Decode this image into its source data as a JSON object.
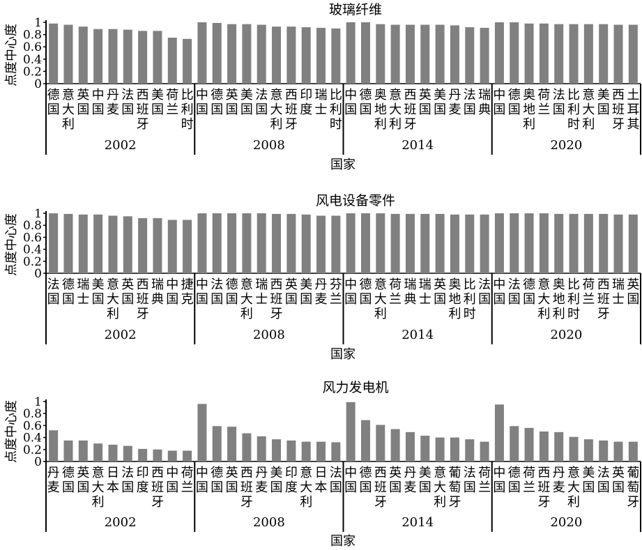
{
  "chart_data": [
    {
      "type": "bar",
      "title": "玻璃纤维",
      "xlabel": "国家",
      "ylabel": "点度中心度",
      "ylim": [
        0,
        1
      ],
      "yticks": [
        "0",
        "0.2",
        "0.4",
        "0.6",
        "0.8",
        "1"
      ],
      "bar_color": "#808080",
      "groups": [
        {
          "year": "2002",
          "categories": [
            "德国",
            "意大利",
            "英国",
            "中国",
            "丹麦",
            "法国",
            "西班牙",
            "美国",
            "荷兰",
            "比利时"
          ],
          "values": [
            0.98,
            0.96,
            0.93,
            0.89,
            0.89,
            0.88,
            0.86,
            0.86,
            0.75,
            0.73
          ]
        },
        {
          "year": "2008",
          "categories": [
            "中国",
            "德国",
            "英国",
            "美国",
            "法国",
            "意大利",
            "西班牙",
            "印度",
            "瑞士",
            "比利时"
          ],
          "values": [
            1.0,
            0.99,
            0.97,
            0.97,
            0.96,
            0.93,
            0.93,
            0.92,
            0.91,
            0.9
          ]
        },
        {
          "year": "2014",
          "categories": [
            "中国",
            "德国",
            "奥地利",
            "意大利",
            "西班牙",
            "英国",
            "美国",
            "丹麦",
            "法国",
            "瑞典"
          ],
          "values": [
            1.0,
            1.0,
            0.97,
            0.96,
            0.96,
            0.96,
            0.96,
            0.95,
            0.92,
            0.91
          ]
        },
        {
          "year": "2020",
          "categories": [
            "中国",
            "德国",
            "奥地利",
            "荷兰",
            "法国",
            "比利时",
            "意大利",
            "美国",
            "西班牙",
            "土耳其"
          ],
          "values": [
            1.0,
            1.0,
            0.98,
            0.98,
            0.97,
            0.97,
            0.97,
            0.97,
            0.96,
            0.96
          ]
        }
      ]
    },
    {
      "type": "bar",
      "title": "风电设备零件",
      "xlabel": "国家",
      "ylabel": "点度中心度",
      "ylim": [
        0,
        1
      ],
      "yticks": [
        "0",
        "0.2",
        "0.4",
        "0.6",
        "0.8",
        "1"
      ],
      "bar_color": "#808080",
      "groups": [
        {
          "year": "2002",
          "categories": [
            "法国",
            "德国",
            "瑞士",
            "美国",
            "意大利",
            "英国",
            "西班牙",
            "瑞典",
            "中国",
            "捷克"
          ],
          "values": [
            1.0,
            0.99,
            0.98,
            0.98,
            0.96,
            0.95,
            0.92,
            0.92,
            0.89,
            0.89
          ]
        },
        {
          "year": "2008",
          "categories": [
            "中国",
            "法国",
            "德国",
            "意大利",
            "瑞士",
            "西班牙",
            "英国",
            "美国",
            "丹麦",
            "芬兰"
          ],
          "values": [
            1.0,
            1.0,
            1.0,
            1.0,
            1.0,
            0.99,
            0.99,
            0.98,
            0.96,
            0.96
          ]
        },
        {
          "year": "2014",
          "categories": [
            "中国",
            "德国",
            "意大利",
            "荷兰",
            "瑞典",
            "瑞士",
            "英国",
            "奥地利",
            "比利时",
            "法国"
          ],
          "values": [
            1.0,
            1.0,
            1.0,
            0.99,
            0.99,
            0.99,
            0.99,
            0.98,
            0.98,
            0.98
          ]
        },
        {
          "year": "2020",
          "categories": [
            "中国",
            "法国",
            "德国",
            "意大利",
            "奥地利",
            "比利时",
            "荷兰",
            "西班牙",
            "瑞士",
            "英国"
          ],
          "values": [
            1.0,
            1.0,
            1.0,
            1.0,
            0.99,
            0.99,
            0.99,
            0.99,
            0.98,
            0.98
          ]
        }
      ]
    },
    {
      "type": "bar",
      "title": "风力发电机",
      "xlabel": "国家",
      "ylabel": "点度中心度",
      "ylim": [
        0,
        1
      ],
      "yticks": [
        "0",
        "0.2",
        "0.4",
        "0.6",
        "0.8",
        "1"
      ],
      "bar_color": "#808080",
      "groups": [
        {
          "year": "2002",
          "categories": [
            "丹麦",
            "德国",
            "英国",
            "意大利",
            "日本",
            "法国",
            "印度",
            "西班牙",
            "中国",
            "荷兰"
          ],
          "values": [
            0.52,
            0.35,
            0.35,
            0.3,
            0.28,
            0.26,
            0.21,
            0.2,
            0.18,
            0.18
          ]
        },
        {
          "year": "2008",
          "categories": [
            "中国",
            "德国",
            "英国",
            "西班牙",
            "丹麦",
            "美国",
            "印度",
            "意大利",
            "日本",
            "法国"
          ],
          "values": [
            0.96,
            0.59,
            0.58,
            0.47,
            0.42,
            0.37,
            0.35,
            0.33,
            0.33,
            0.32
          ]
        },
        {
          "year": "2014",
          "categories": [
            "中国",
            "德国",
            "西班牙",
            "英国",
            "丹麦",
            "美国",
            "意大利",
            "葡萄牙",
            "法国",
            "荷兰"
          ],
          "values": [
            0.99,
            0.69,
            0.61,
            0.54,
            0.49,
            0.43,
            0.4,
            0.4,
            0.37,
            0.33
          ]
        },
        {
          "year": "2020",
          "categories": [
            "中国",
            "德国",
            "荷兰",
            "西班牙",
            "丹麦",
            "意大利",
            "美国",
            "法国",
            "英国",
            "葡萄牙"
          ],
          "values": [
            0.95,
            0.59,
            0.56,
            0.5,
            0.49,
            0.41,
            0.37,
            0.35,
            0.33,
            0.33
          ]
        }
      ]
    }
  ]
}
